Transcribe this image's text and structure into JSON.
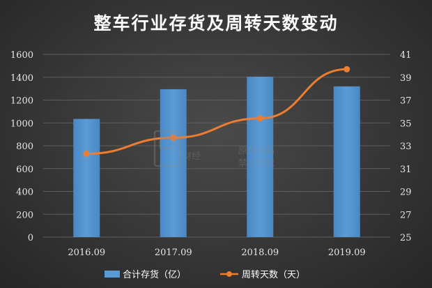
{
  "chart_data": {
    "type": "bar+line",
    "title": "整车行业存货及周转天数变动",
    "categories": [
      "2016.09",
      "2017.09",
      "2018.09",
      "2019.09"
    ],
    "series": [
      {
        "name": "合计存货（亿）",
        "type": "bar",
        "axis": "left",
        "values": [
          1035,
          1295,
          1405,
          1320
        ],
        "color": "#5b9bd5"
      },
      {
        "name": "周转天数（天）",
        "type": "line",
        "axis": "right",
        "values": [
          32.3,
          33.7,
          35.4,
          39.7
        ],
        "color": "#ed7d31"
      }
    ],
    "y_left": {
      "min": 0,
      "max": 1600,
      "step": 200,
      "ticks": [
        "0",
        "200",
        "400",
        "600",
        "800",
        "1000",
        "1200",
        "1400",
        "1600"
      ]
    },
    "y_right": {
      "min": 25,
      "max": 41,
      "step": 2,
      "ticks": [
        "25",
        "27",
        "29",
        "31",
        "33",
        "35",
        "37",
        "39",
        "41"
      ]
    },
    "grid": true,
    "legend_position": "bottom"
  },
  "watermark": {
    "text_line1": "原创作品",
    "text_line2": "禁止转载",
    "brand": "财经"
  }
}
